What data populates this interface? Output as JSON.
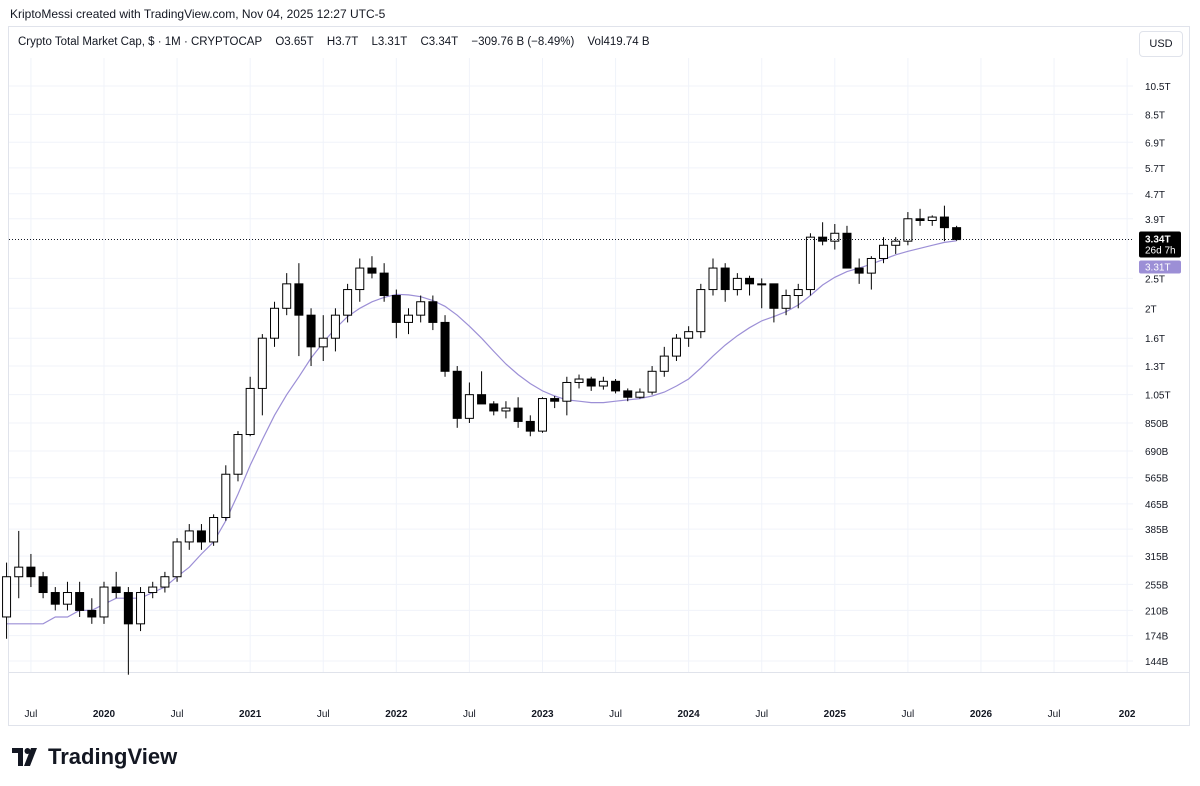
{
  "header": {
    "credit": "KriptoMessi created with TradingView.com, Nov 04, 2025 12:27 UTC-5"
  },
  "legend": {
    "symbol": "Crypto Total Market Cap, $ · 1M · CRYPTOCAP",
    "open": "O3.65T",
    "high": "H3.7T",
    "low": "L3.31T",
    "close": "C3.34T",
    "change": "−309.76 B (−8.49%)",
    "volume": "Vol419.74 B"
  },
  "currency_button": "USD",
  "brand": {
    "name": "TradingView"
  },
  "colors": {
    "bull_fill": "#ffffff",
    "bear_fill": "#000000",
    "candle_stroke": "#000000",
    "ma_line": "#9c8fd6",
    "ma_badge": "#9c8fd6",
    "price_badge": "#000000",
    "grid": "#f0f3fa",
    "axis_text": "#131722"
  },
  "chart_data": {
    "type": "candlestick",
    "timeframe": "1M",
    "y_scale": "log",
    "ylim": [
      "125B",
      "12.5T"
    ],
    "y_ticks": [
      "10.5T",
      "8.5T",
      "6.9T",
      "5.7T",
      "4.7T",
      "3.9T",
      "2.5T",
      "2T",
      "1.6T",
      "1.3T",
      "1.05T",
      "850B",
      "690B",
      "565B",
      "465B",
      "385B",
      "315B",
      "255B",
      "210B",
      "174B",
      "144B"
    ],
    "x_ticks": [
      "Jul",
      "2020",
      "Jul",
      "2021",
      "Jul",
      "2022",
      "Jul",
      "2023",
      "Jul",
      "2024",
      "Jul",
      "2025",
      "Jul",
      "2026",
      "Jul",
      "202"
    ],
    "start_month": "2019-05",
    "last_price": {
      "label": "3.34T",
      "countdown": "26d 7h",
      "value": 3.34
    },
    "ma_last": {
      "label": "3.31T",
      "value": 3.31
    },
    "ohlc": [
      [
        0.2,
        0.3,
        0.17,
        0.27
      ],
      [
        0.27,
        0.38,
        0.23,
        0.29
      ],
      [
        0.29,
        0.32,
        0.25,
        0.27
      ],
      [
        0.27,
        0.28,
        0.23,
        0.24
      ],
      [
        0.24,
        0.25,
        0.21,
        0.22
      ],
      [
        0.22,
        0.26,
        0.21,
        0.24
      ],
      [
        0.24,
        0.26,
        0.2,
        0.21
      ],
      [
        0.21,
        0.23,
        0.19,
        0.2
      ],
      [
        0.2,
        0.26,
        0.19,
        0.25
      ],
      [
        0.25,
        0.28,
        0.23,
        0.24
      ],
      [
        0.24,
        0.25,
        0.13,
        0.19
      ],
      [
        0.19,
        0.25,
        0.18,
        0.24
      ],
      [
        0.24,
        0.26,
        0.23,
        0.25
      ],
      [
        0.25,
        0.28,
        0.24,
        0.27
      ],
      [
        0.27,
        0.36,
        0.26,
        0.35
      ],
      [
        0.35,
        0.4,
        0.33,
        0.38
      ],
      [
        0.38,
        0.4,
        0.33,
        0.35
      ],
      [
        0.35,
        0.43,
        0.34,
        0.42
      ],
      [
        0.42,
        0.62,
        0.41,
        0.58
      ],
      [
        0.58,
        0.8,
        0.55,
        0.78
      ],
      [
        0.78,
        1.2,
        0.77,
        1.1
      ],
      [
        1.1,
        1.65,
        0.9,
        1.6
      ],
      [
        1.6,
        2.1,
        1.5,
        2.0
      ],
      [
        2.0,
        2.6,
        1.9,
        2.4
      ],
      [
        2.4,
        2.8,
        1.4,
        1.9
      ],
      [
        1.9,
        2.0,
        1.3,
        1.5
      ],
      [
        1.5,
        1.9,
        1.35,
        1.6
      ],
      [
        1.6,
        2.0,
        1.45,
        1.9
      ],
      [
        1.9,
        2.4,
        1.8,
        2.3
      ],
      [
        2.3,
        2.9,
        2.1,
        2.7
      ],
      [
        2.7,
        2.95,
        2.5,
        2.6
      ],
      [
        2.6,
        2.8,
        2.1,
        2.2
      ],
      [
        2.2,
        2.3,
        1.6,
        1.8
      ],
      [
        1.8,
        2.0,
        1.65,
        1.9
      ],
      [
        1.9,
        2.2,
        1.8,
        2.1
      ],
      [
        2.1,
        2.2,
        1.7,
        1.8
      ],
      [
        1.8,
        1.9,
        1.2,
        1.25
      ],
      [
        1.25,
        1.3,
        0.82,
        0.88
      ],
      [
        0.88,
        1.15,
        0.85,
        1.05
      ],
      [
        1.05,
        1.25,
        0.98,
        0.98
      ],
      [
        0.98,
        1.0,
        0.9,
        0.93
      ],
      [
        0.93,
        1.0,
        0.88,
        0.95
      ],
      [
        0.95,
        1.03,
        0.82,
        0.86
      ],
      [
        0.86,
        0.9,
        0.77,
        0.8
      ],
      [
        0.8,
        1.03,
        0.79,
        1.02
      ],
      [
        1.02,
        1.04,
        0.95,
        1.0
      ],
      [
        1.0,
        1.2,
        0.9,
        1.15
      ],
      [
        1.15,
        1.22,
        1.1,
        1.18
      ],
      [
        1.18,
        1.2,
        1.08,
        1.12
      ],
      [
        1.12,
        1.2,
        1.09,
        1.16
      ],
      [
        1.16,
        1.18,
        1.06,
        1.08
      ],
      [
        1.08,
        1.1,
        1.0,
        1.03
      ],
      [
        1.03,
        1.1,
        1.02,
        1.07
      ],
      [
        1.07,
        1.3,
        1.05,
        1.25
      ],
      [
        1.25,
        1.5,
        1.2,
        1.4
      ],
      [
        1.4,
        1.65,
        1.35,
        1.6
      ],
      [
        1.6,
        1.75,
        1.5,
        1.68
      ],
      [
        1.68,
        2.4,
        1.6,
        2.3
      ],
      [
        2.3,
        2.9,
        2.2,
        2.7
      ],
      [
        2.7,
        2.8,
        2.1,
        2.3
      ],
      [
        2.3,
        2.6,
        2.2,
        2.5
      ],
      [
        2.5,
        2.55,
        2.2,
        2.4
      ],
      [
        2.4,
        2.5,
        2.0,
        2.4
      ],
      [
        2.4,
        2.4,
        1.8,
        2.0
      ],
      [
        2.0,
        2.3,
        1.9,
        2.2
      ],
      [
        2.2,
        2.4,
        2.0,
        2.3
      ],
      [
        2.3,
        3.5,
        2.2,
        3.4
      ],
      [
        3.4,
        3.8,
        3.2,
        3.3
      ],
      [
        3.3,
        3.75,
        3.1,
        3.5
      ],
      [
        3.5,
        3.7,
        2.7,
        2.7
      ],
      [
        2.7,
        2.9,
        2.4,
        2.6
      ],
      [
        2.6,
        2.95,
        2.3,
        2.9
      ],
      [
        2.9,
        3.4,
        2.8,
        3.2
      ],
      [
        3.2,
        3.4,
        3.0,
        3.3
      ],
      [
        3.3,
        4.1,
        3.2,
        3.9
      ],
      [
        3.9,
        4.2,
        3.7,
        3.85
      ],
      [
        3.85,
        4.0,
        3.7,
        3.95
      ],
      [
        3.95,
        4.3,
        3.3,
        3.65
      ],
      [
        3.65,
        3.7,
        3.31,
        3.34
      ]
    ],
    "ma": [
      0.19,
      0.19,
      0.19,
      0.19,
      0.2,
      0.2,
      0.21,
      0.21,
      0.22,
      0.23,
      0.23,
      0.23,
      0.24,
      0.25,
      0.27,
      0.29,
      0.32,
      0.35,
      0.41,
      0.5,
      0.62,
      0.75,
      0.9,
      1.05,
      1.2,
      1.38,
      1.55,
      1.72,
      1.88,
      2.0,
      2.1,
      2.17,
      2.22,
      2.21,
      2.18,
      2.12,
      2.03,
      1.9,
      1.75,
      1.6,
      1.45,
      1.32,
      1.22,
      1.14,
      1.08,
      1.04,
      1.01,
      1.0,
      0.99,
      0.99,
      1.0,
      1.01,
      1.02,
      1.04,
      1.07,
      1.12,
      1.18,
      1.28,
      1.4,
      1.52,
      1.63,
      1.73,
      1.82,
      1.88,
      1.95,
      2.05,
      2.2,
      2.38,
      2.52,
      2.63,
      2.7,
      2.78,
      2.88,
      2.98,
      3.06,
      3.13,
      3.2,
      3.27,
      3.31
    ]
  }
}
